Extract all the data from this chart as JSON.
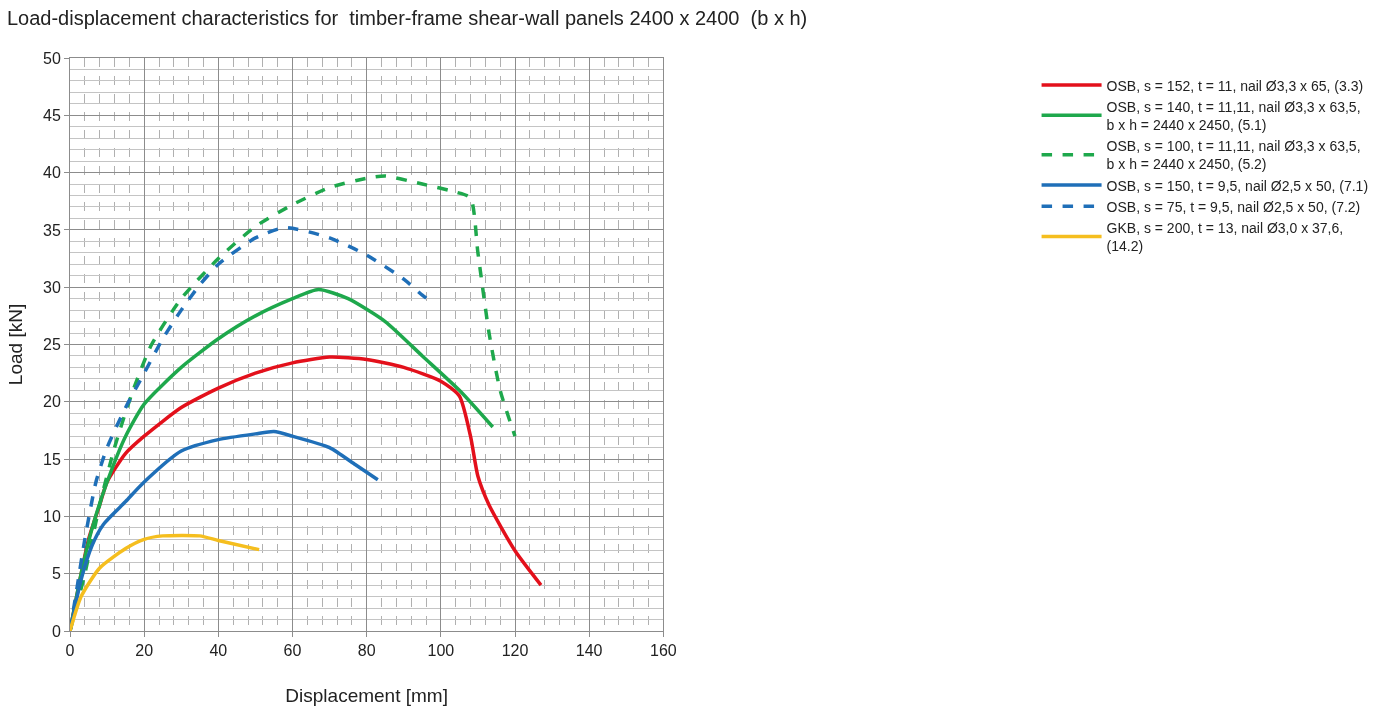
{
  "chart_data": {
    "type": "line",
    "title": "Load-displacement characteristics for  timber-frame shear-wall panels 2400 x 2400  (b x h)",
    "xlabel": "Displacement [mm]",
    "ylabel": "Load [kN]",
    "xlim": [
      0,
      160
    ],
    "xticks": [
      0,
      20,
      40,
      60,
      80,
      100,
      120,
      140,
      160
    ],
    "ylim": [
      0,
      50
    ],
    "yticks": [
      0,
      5,
      10,
      15,
      20,
      25,
      30,
      35,
      40,
      45,
      50
    ],
    "grid": true,
    "legend": "right",
    "marker": "none",
    "series": [
      {
        "name": "OSB, s = 152, t = 11, nail Ø3,3 x 65, (3.3)",
        "color": "#e3101b",
        "line_style": "solid",
        "x": [
          0,
          5,
          8,
          10,
          15,
          20,
          30,
          40,
          50,
          60,
          70,
          80,
          90,
          100,
          105,
          108,
          110,
          113,
          120,
          127
        ],
        "values": [
          0,
          8,
          11,
          13,
          15.5,
          17,
          19.5,
          21.2,
          22.5,
          23.4,
          23.9,
          23.7,
          23,
          21.8,
          20.5,
          17,
          13.5,
          11,
          7,
          4
        ]
      },
      {
        "name": "OSB, s = 140, t = 11,11, nail Ø3,3 x 63,5,\nb x h = 2440 x 2450, (5.1)",
        "color": "#1ea84c",
        "line_style": "solid",
        "x": [
          0,
          3,
          6,
          10,
          15,
          20,
          30,
          40,
          50,
          60,
          67,
          75,
          85,
          95,
          105,
          114
        ],
        "values": [
          0,
          5,
          9,
          13,
          17,
          19.8,
          23,
          25.5,
          27.5,
          29,
          29.8,
          29,
          27,
          24,
          21,
          17.8
        ]
      },
      {
        "name": "OSB, s = 100, t = 11,11, nail Ø3,3 x 63,5,\nb x h = 2440 x 2450, (5.2)",
        "color": "#1ea84c",
        "line_style": "dashed",
        "x": [
          0,
          4,
          8,
          12,
          17,
          22,
          30,
          40,
          50,
          60,
          70,
          80,
          85,
          95,
          104,
          108,
          110,
          113,
          116,
          120
        ],
        "values": [
          0,
          5,
          11,
          16,
          21,
          25,
          29,
          32.5,
          35.3,
          37.2,
          38.7,
          39.5,
          39.7,
          39,
          38.3,
          37.8,
          33,
          26,
          21,
          17
        ]
      },
      {
        "name": "OSB, s = 150, t = 9,5, nail Ø2,5 x 50, (7.1)",
        "color": "#1f6fb8",
        "line_style": "solid",
        "x": [
          0,
          3,
          6,
          9,
          15,
          20,
          30,
          40,
          50,
          55,
          60,
          70,
          77,
          83
        ],
        "values": [
          0,
          4.5,
          7.5,
          9.3,
          11.3,
          13,
          15.7,
          16.7,
          17.2,
          17.4,
          17,
          16,
          14.5,
          13.2
        ]
      },
      {
        "name": "OSB, s = 75, t = 9,5, nail Ø2,5 x 50, (7.2)",
        "color": "#1f6fb8",
        "line_style": "dashed",
        "x": [
          0,
          2,
          4,
          7,
          10,
          15,
          20,
          25,
          30,
          35,
          40,
          50,
          58,
          70,
          80,
          90,
          95,
          97.5
        ],
        "values": [
          0,
          4,
          8,
          13,
          16,
          19.5,
          22.5,
          25.5,
          28,
          30.2,
          32,
          34.3,
          35.2,
          34.3,
          32.8,
          30.7,
          29.3,
          28.7
        ]
      },
      {
        "name": "GKB, s = 200, t = 13, nail Ø3,0 x 37,6,\n(14.2)",
        "color": "#f5be1e",
        "line_style": "solid",
        "x": [
          0,
          3,
          8,
          15,
          20,
          25,
          35,
          40,
          51
        ],
        "values": [
          0,
          3,
          5.5,
          7.2,
          8,
          8.3,
          8.3,
          7.9,
          7.1
        ]
      }
    ]
  }
}
